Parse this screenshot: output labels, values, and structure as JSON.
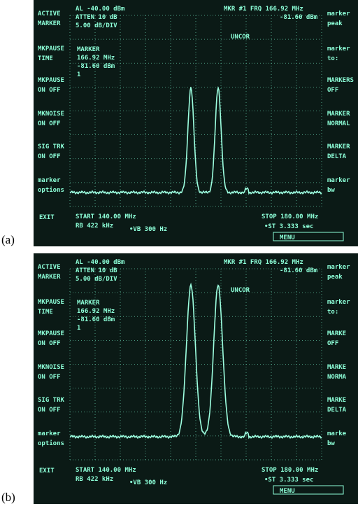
{
  "panels": [
    {
      "label": "(a)",
      "screen": {
        "settings": [
          "AL -40.00 dBm",
          "ATTEN 10 dB",
          "5.00 dB/DIV"
        ],
        "marker_readout": [
          "MKR #1 FRQ 166.92 MHz",
          "-81.60 dBm"
        ],
        "status": "UNCOR",
        "marker_box": [
          "MARKER",
          "166.92 MHz",
          "-81.60 dBm",
          "1"
        ],
        "left_menu": [
          [
            "ACTIVE",
            "MARKER"
          ],
          [
            "MKPAUSE",
            "TIME"
          ],
          [
            "MKPAUSE",
            "ON OFF"
          ],
          [
            "MKNOISE",
            "ON OFF"
          ],
          [
            "SIG TRK",
            "ON OFF"
          ],
          [
            "marker",
            "options"
          ]
        ],
        "exit": "EXIT",
        "right_menu": [
          [
            "marker",
            "peak"
          ],
          [
            "marker",
            "to:"
          ],
          [
            "MARKERS",
            "OFF"
          ],
          [
            "MARKER",
            "NORMAL"
          ],
          [
            "MARKER",
            "DELTA"
          ],
          [
            "marker",
            "bw"
          ]
        ],
        "start": "START 140.00 MHz",
        "rbw": "RB 422 kHz",
        "vbw": "•VB 300 Hz",
        "stop": "STOP 180.00 MHz",
        "sweep": "•ST 3.333 sec",
        "menu": "MENU"
      }
    },
    {
      "label": "(b)",
      "screen": {
        "settings": [
          "AL -40.00 dBm",
          "ATTEN 10 dB",
          "5.00 dB/DIV"
        ],
        "marker_readout": [
          "MKR #1 FRQ 166.92 MHz",
          "-81.60 dBm"
        ],
        "status": "UNCOR",
        "marker_box": [
          "MARKER",
          "166.92 MHz",
          "-81.60 dBm",
          "1"
        ],
        "left_menu": [
          [
            "ACTIVE",
            "MARKER"
          ],
          [
            "MKPAUSE",
            "TIME"
          ],
          [
            "MKPAUSE",
            "ON OFF"
          ],
          [
            "MKNOISE",
            "ON OFF"
          ],
          [
            "SIG TRK",
            "ON OFF"
          ],
          [
            "marker",
            "options"
          ]
        ],
        "exit": "EXIT",
        "right_menu": [
          [
            "marker",
            "peak"
          ],
          [
            "marker",
            "to:"
          ],
          [
            "MARKE",
            "OFF"
          ],
          [
            "MARKE",
            "NORMA"
          ],
          [
            "MARKE",
            "DELTA"
          ],
          [
            "marke",
            "bw"
          ]
        ],
        "start": "START 140.00 MHz",
        "rbw": "RB 422 kHz",
        "vbw": "•VB 300 Hz",
        "stop": "STOP 180.00 MHz",
        "sweep": "•ST 3.333 sec",
        "menu": "MENU"
      }
    }
  ]
}
